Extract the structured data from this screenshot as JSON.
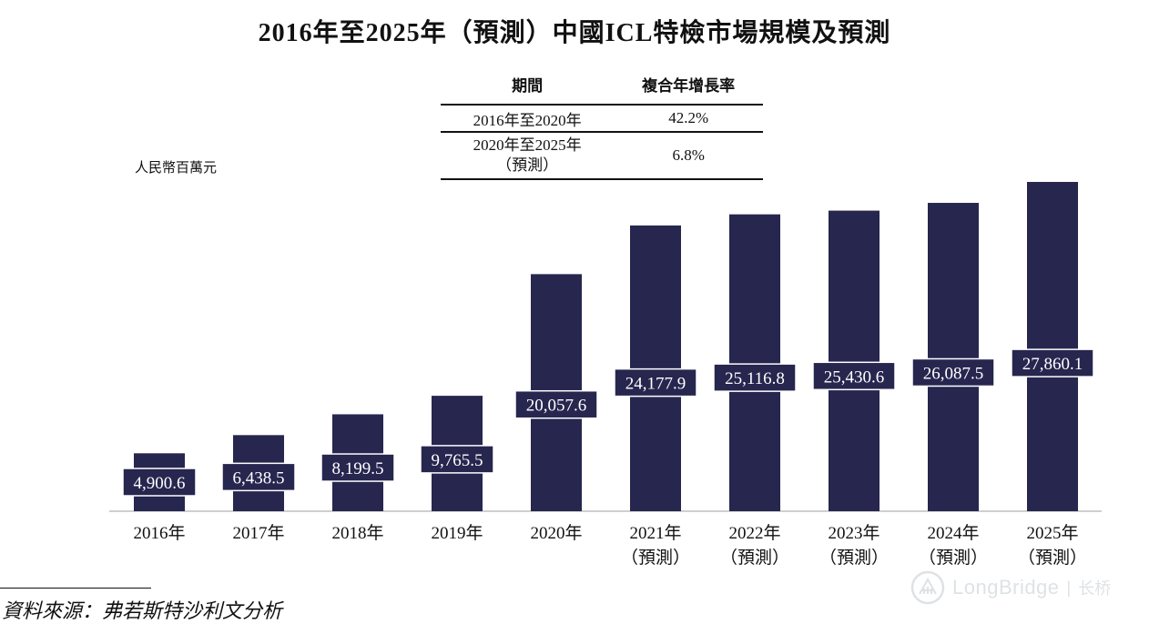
{
  "chart_data": {
    "type": "bar",
    "title": "2016年至2025年（預測）中國ICL特檢市場規模及預測",
    "ylabel": "人民幣百萬元",
    "xlabel": "",
    "ylim": [
      0,
      30000
    ],
    "categories": [
      [
        "2016年"
      ],
      [
        "2017年"
      ],
      [
        "2018年"
      ],
      [
        "2019年"
      ],
      [
        "2020年"
      ],
      [
        "2021年",
        "（預測）"
      ],
      [
        "2022年",
        "（預測）"
      ],
      [
        "2023年",
        "（預測）"
      ],
      [
        "2024年",
        "（預測）"
      ],
      [
        "2025年",
        "（預測）"
      ]
    ],
    "values": [
      4900.6,
      6438.5,
      8199.5,
      9765.5,
      20057.6,
      24177.9,
      25116.8,
      25430.6,
      26087.5,
      27860.1
    ],
    "labels": [
      "4,900.6",
      "6,438.5",
      "8,199.5",
      "9,765.5",
      "20,057.6",
      "24,177.9",
      "25,116.8",
      "25,430.6",
      "26,087.5",
      "27,860.1"
    ],
    "bar_color": "#26264f",
    "grid": false,
    "cagr_table": {
      "headers": [
        "期間",
        "複合年增長率"
      ],
      "rows": [
        {
          "period": [
            "2016年至2020年"
          ],
          "rate": "42.2%"
        },
        {
          "period": [
            "2020年至2025年",
            "（預測）"
          ],
          "rate": "6.8%"
        }
      ]
    }
  },
  "source": "資料來源：弗若斯特沙利文分析",
  "watermark": {
    "brand": "LongBridge",
    "separator": "|",
    "brand_cn": "长桥"
  }
}
